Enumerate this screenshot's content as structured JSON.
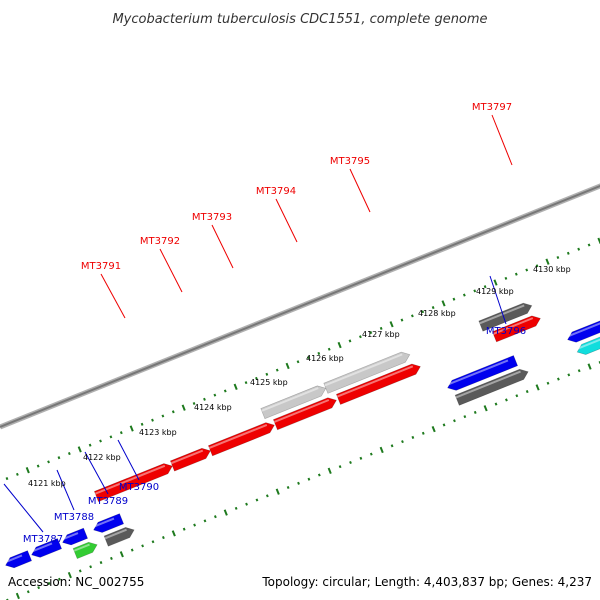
{
  "title": "Mycobacterium tuberculosis CDC1551, complete genome",
  "footer": {
    "accession": "Accession: NC_002755",
    "topology": "Topology: circular; Length: 4,403,837 bp; Genes: 4,237"
  },
  "colors": {
    "background": "#ffffff",
    "backbone": "#888888",
    "tick_dots": "#1e7a1e",
    "label_top": "#ee0000",
    "label_bottom": "#0000cc",
    "gene_red": "#ee0000",
    "gene_blue": "#0000ee",
    "gene_gray_dark": "#5a5a5a",
    "gene_gray_light": "#c8c8c8",
    "gene_green": "#33cc33",
    "gene_cyan": "#11dddd"
  },
  "ticks": {
    "labels": [
      "4121 kbp",
      "4122 kbp",
      "4123 kbp",
      "4124 kbp",
      "4125 kbp",
      "4126 kbp",
      "4127 kbp",
      "4128 kbp",
      "4129 kbp",
      "4130 kbp"
    ]
  },
  "gene_labels_top": [
    "MT3791",
    "MT3792",
    "MT3793",
    "MT3794",
    "MT3795",
    "MT3797"
  ],
  "gene_labels_bottom": [
    "MT3787",
    "MT3788",
    "MT3789",
    "MT3790",
    "MT3796"
  ]
}
